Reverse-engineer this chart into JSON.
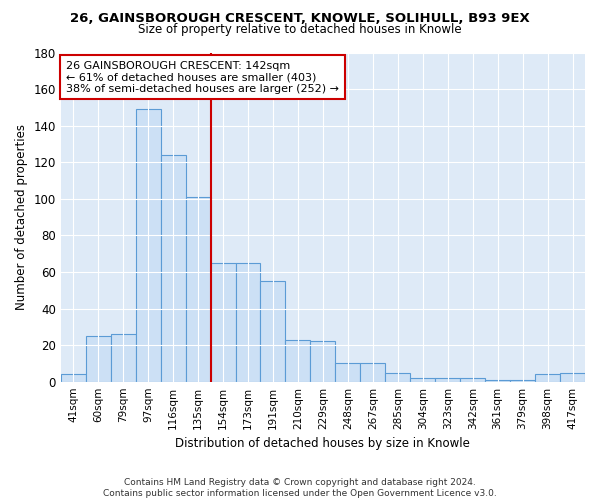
{
  "title1": "26, GAINSBOROUGH CRESCENT, KNOWLE, SOLIHULL, B93 9EX",
  "title2": "Size of property relative to detached houses in Knowle",
  "xlabel": "Distribution of detached houses by size in Knowle",
  "ylabel": "Number of detached properties",
  "categories": [
    "41sqm",
    "60sqm",
    "79sqm",
    "97sqm",
    "116sqm",
    "135sqm",
    "154sqm",
    "173sqm",
    "191sqm",
    "210sqm",
    "229sqm",
    "248sqm",
    "267sqm",
    "285sqm",
    "304sqm",
    "323sqm",
    "342sqm",
    "361sqm",
    "379sqm",
    "398sqm",
    "417sqm"
  ],
  "values": [
    4,
    25,
    26,
    149,
    124,
    101,
    65,
    65,
    55,
    23,
    22,
    10,
    10,
    5,
    2,
    2,
    2,
    1,
    1,
    4,
    5
  ],
  "bar_color": "#cce0f5",
  "bar_edge_color": "#5b9bd5",
  "ylim": [
    0,
    180
  ],
  "yticks": [
    0,
    20,
    40,
    60,
    80,
    100,
    120,
    140,
    160,
    180
  ],
  "annotation_line1": "26 GAINSBOROUGH CRESCENT: 142sqm",
  "annotation_line2": "← 61% of detached houses are smaller (403)",
  "annotation_line3": "38% of semi-detached houses are larger (252) →",
  "vline_color": "#cc0000",
  "footer": "Contains HM Land Registry data © Crown copyright and database right 2024.\nContains public sector information licensed under the Open Government Licence v3.0.",
  "fig_bg_color": "#ffffff",
  "plot_bg_color": "#deeaf7"
}
